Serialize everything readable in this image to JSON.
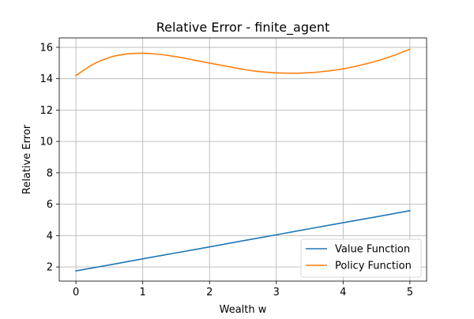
{
  "chart_data": {
    "type": "line",
    "title": "Relative Error - finite_agent",
    "xlabel": "Wealth w",
    "ylabel": "Relative Error",
    "xlim": [
      -0.25,
      5.25
    ],
    "ylim": [
      1.1,
      16.6
    ],
    "xticks": [
      0,
      1,
      2,
      3,
      4,
      5
    ],
    "yticks": [
      2,
      4,
      6,
      8,
      10,
      12,
      14,
      16
    ],
    "grid": true,
    "legend_position": "lower-right",
    "series": [
      {
        "name": "Value Function",
        "color": "#1f77b4",
        "x": [
          0,
          0.5,
          1,
          1.5,
          2,
          2.5,
          3,
          3.5,
          4,
          4.5,
          5
        ],
        "y": [
          1.75,
          2.13,
          2.52,
          2.9,
          3.28,
          3.67,
          4.05,
          4.44,
          4.82,
          5.2,
          5.59
        ]
      },
      {
        "name": "Policy Function",
        "color": "#ff7f0e",
        "x": [
          0,
          0.25,
          0.5,
          0.75,
          1,
          1.25,
          1.5,
          1.75,
          2,
          2.25,
          2.5,
          2.75,
          3,
          3.25,
          3.5,
          3.75,
          4,
          4.25,
          4.5,
          4.75,
          5
        ],
        "y": [
          14.2,
          14.9,
          15.35,
          15.57,
          15.62,
          15.55,
          15.4,
          15.2,
          15.0,
          14.8,
          14.6,
          14.45,
          14.37,
          14.35,
          14.38,
          14.48,
          14.63,
          14.85,
          15.12,
          15.47,
          15.88
        ]
      }
    ]
  }
}
